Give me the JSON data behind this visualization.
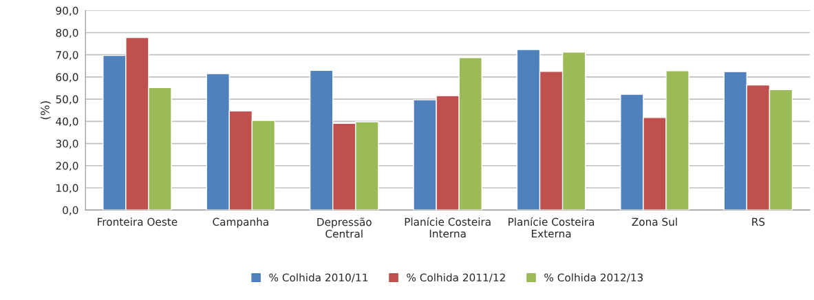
{
  "chart_data": {
    "type": "bar",
    "ylabel": "(%)",
    "categories": [
      "Fronteira Oeste",
      "Campanha",
      "Depressão\nCentral",
      "Planície Costeira\nInterna",
      "Planície Costeira\nExterna",
      "Zona Sul",
      "RS"
    ],
    "series": [
      {
        "name": "% Colhida 2010/11",
        "color": "#4f81bd",
        "values": [
          69.7,
          61.5,
          63.0,
          49.7,
          72.4,
          52.2,
          62.4
        ]
      },
      {
        "name": "% Colhida 2011/12",
        "color": "#c0504d",
        "values": [
          77.8,
          44.7,
          39.1,
          51.6,
          62.5,
          41.7,
          56.4
        ]
      },
      {
        "name": "% Colhida 2012/13",
        "color": "#9bbb59",
        "values": [
          55.2,
          40.4,
          39.8,
          68.7,
          71.2,
          62.8,
          54.3
        ]
      }
    ],
    "ylim": [
      0,
      90
    ],
    "yticks": [
      {
        "value": 0,
        "label": "0,0"
      },
      {
        "value": 10,
        "label": "10,0"
      },
      {
        "value": 20,
        "label": "20,0"
      },
      {
        "value": 30,
        "label": "30,0"
      },
      {
        "value": 40,
        "label": "40,0"
      },
      {
        "value": 50,
        "label": "50,0"
      },
      {
        "value": 60,
        "label": "60,0"
      },
      {
        "value": 70,
        "label": "70,0"
      },
      {
        "value": 80,
        "label": "80,0"
      },
      {
        "value": 90,
        "label": "90,0"
      }
    ],
    "grid": "y",
    "legend": "bottom"
  }
}
